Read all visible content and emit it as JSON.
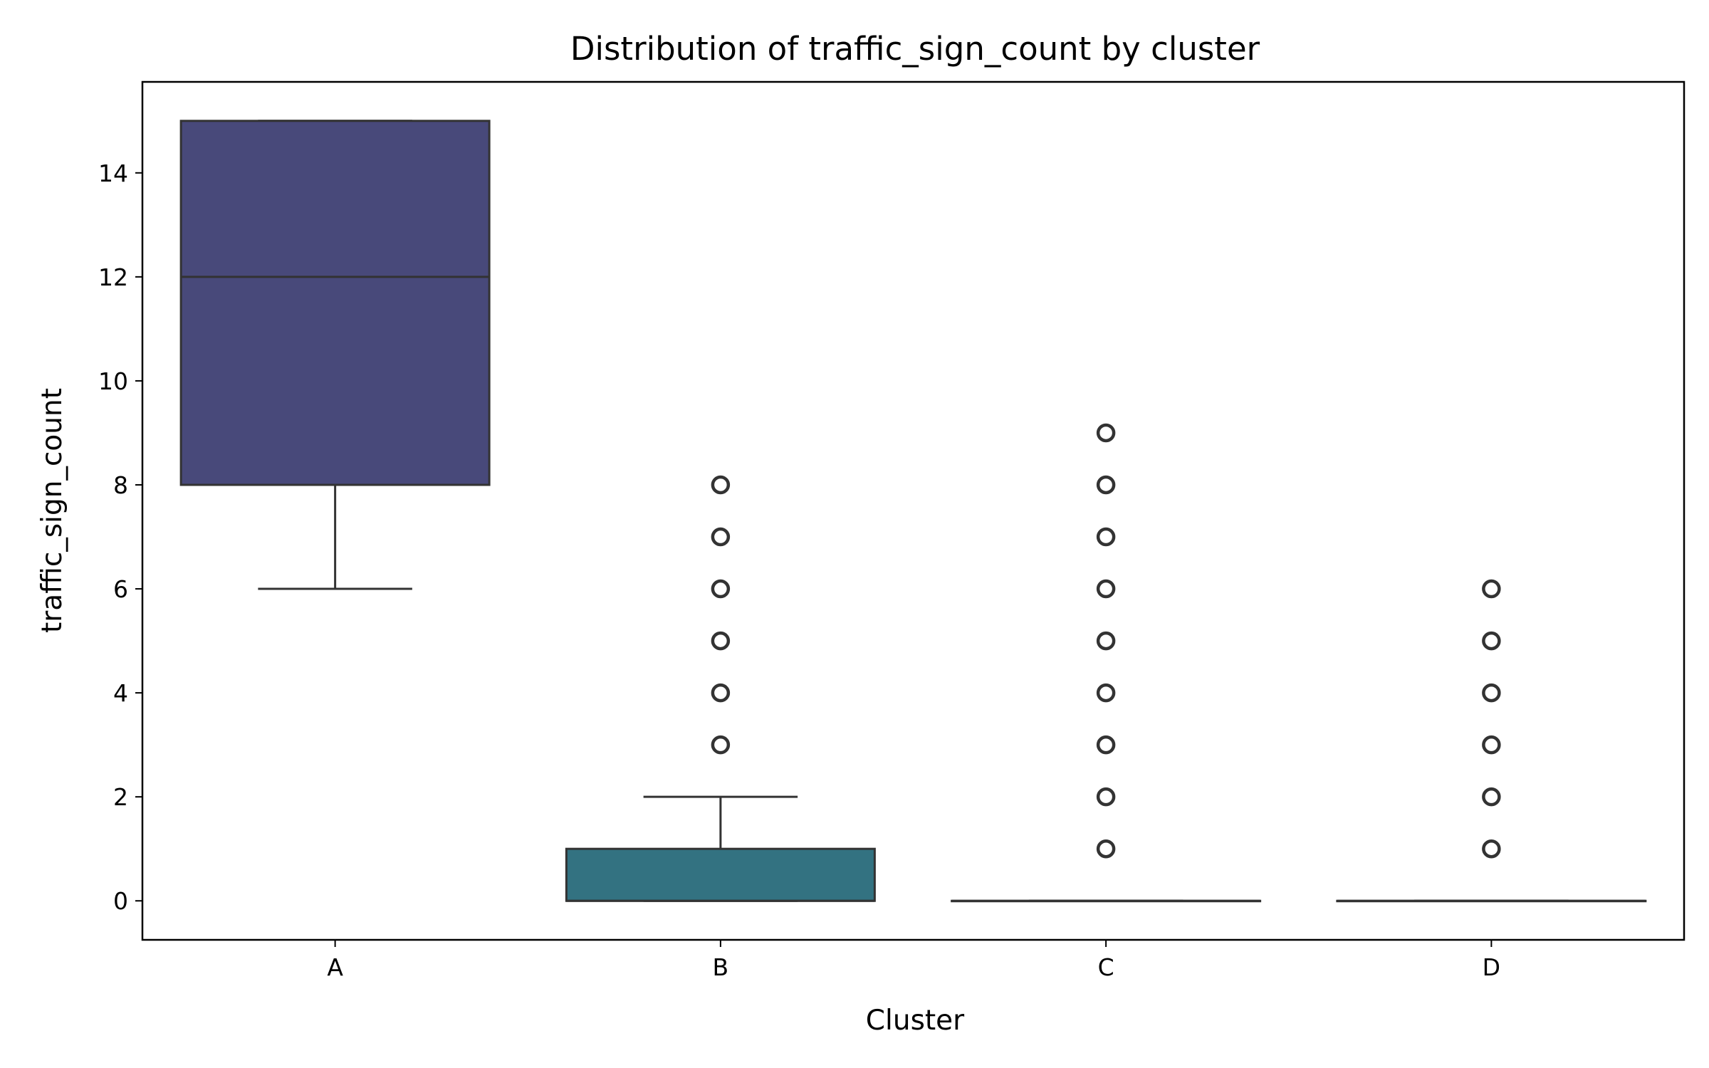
{
  "chart_data": {
    "type": "box",
    "title": "Distribution of traffic_sign_count by cluster",
    "xlabel": "Cluster",
    "ylabel": "traffic_sign_count",
    "categories": [
      "A",
      "B",
      "C",
      "D"
    ],
    "ylim": [
      -0.75,
      15.75
    ],
    "yticks": [
      0,
      2,
      4,
      6,
      8,
      10,
      12,
      14
    ],
    "grid": false,
    "legend": "none",
    "colors": {
      "A": "#48497a",
      "B": "#337281",
      "C": "#2a9a83",
      "D": "#57bb6b",
      "line": "#333333"
    },
    "boxes": [
      {
        "category": "A",
        "q1": 8,
        "median": 12,
        "q3": 15,
        "whisker_low": 6,
        "whisker_high": 15,
        "fliers": []
      },
      {
        "category": "B",
        "q1": 0,
        "median": 0,
        "q3": 1,
        "whisker_low": 0,
        "whisker_high": 2,
        "fliers": [
          3,
          4,
          5,
          6,
          7,
          8
        ]
      },
      {
        "category": "C",
        "q1": 0,
        "median": 0,
        "q3": 0,
        "whisker_low": 0,
        "whisker_high": 0,
        "fliers": [
          1,
          2,
          3,
          4,
          5,
          6,
          7,
          8,
          9
        ]
      },
      {
        "category": "D",
        "q1": 0,
        "median": 0,
        "q3": 0,
        "whisker_low": 0,
        "whisker_high": 0,
        "fliers": [
          1,
          2,
          3,
          4,
          5,
          6
        ]
      }
    ]
  }
}
